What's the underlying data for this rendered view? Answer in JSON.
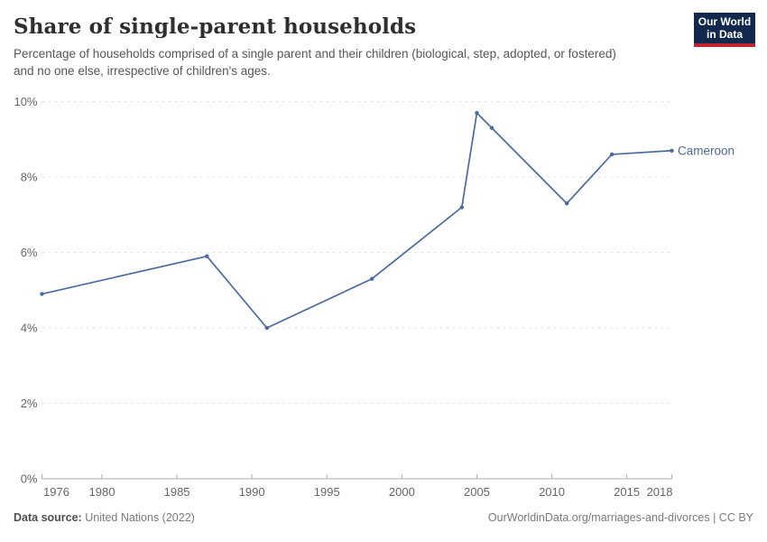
{
  "header": {
    "title": "Share of single-parent households",
    "subtitle": "Percentage of households comprised of a single parent and their children (biological, step, adopted, or fostered) and no one else, irrespective of children's ages.",
    "logo": {
      "line1": "Our World",
      "line2": "in Data",
      "bg_color": "#12294d",
      "accent_color": "#b92832"
    }
  },
  "chart_data": {
    "type": "line",
    "title": "Share of single-parent households",
    "series": [
      {
        "name": "Cameroon",
        "color": "#4c6a9c",
        "x": [
          1976,
          1987,
          1991,
          1998,
          2004,
          2005,
          2006,
          2011,
          2014,
          2018
        ],
        "values": [
          4.9,
          5.9,
          4.0,
          5.3,
          7.2,
          9.7,
          9.3,
          7.3,
          8.6,
          8.7
        ]
      }
    ],
    "xlabel": "",
    "ylabel": "",
    "xlim": [
      1976,
      2018
    ],
    "ylim": [
      0,
      10
    ],
    "x_ticks": [
      1976,
      1980,
      1985,
      1990,
      1995,
      2000,
      2005,
      2010,
      2015,
      2018
    ],
    "y_ticks": [
      0,
      2,
      4,
      6,
      8,
      10
    ],
    "y_tick_suffix": "%",
    "grid": "horizontal-dashed",
    "legend": "end-of-line-label",
    "axis_color": "#adadad",
    "grid_color": "#e2e2e2",
    "tick_label_color": "#666666"
  },
  "footer": {
    "data_source_label": "Data source:",
    "data_source_value": "United Nations (2022)",
    "attribution": "OurWorldinData.org/marriages-and-divorces | CC BY"
  }
}
